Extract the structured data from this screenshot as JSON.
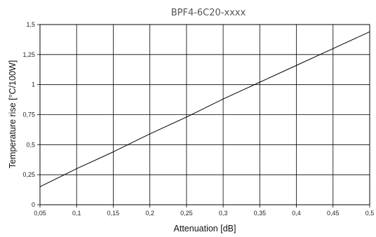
{
  "chart_data": {
    "type": "line",
    "title": "BPF4-6C20-xxxx",
    "xlabel": "Attenuation [dB]",
    "ylabel": "Temperature rise [°C/100W]",
    "xlim": [
      0.05,
      0.5
    ],
    "ylim": [
      0,
      1.5
    ],
    "x_ticks": [
      "0,05",
      "0,1",
      "0,15",
      "0,2",
      "0,25",
      "0,3",
      "0,35",
      "0,4",
      "0,45",
      "0,5"
    ],
    "y_ticks": [
      "0",
      "0,25",
      "0,5",
      "0,75",
      "1",
      "1,25",
      "1,5"
    ],
    "grid": true,
    "series": [
      {
        "x": [
          0.05,
          0.1,
          0.15,
          0.2,
          0.25,
          0.3,
          0.35,
          0.4,
          0.45,
          0.5
        ],
        "y": [
          0.15,
          0.3,
          0.44,
          0.59,
          0.73,
          0.88,
          1.02,
          1.16,
          1.3,
          1.44
        ]
      }
    ],
    "colors": {
      "line": "#000000",
      "grid": "#000000",
      "title": "#555555"
    }
  }
}
